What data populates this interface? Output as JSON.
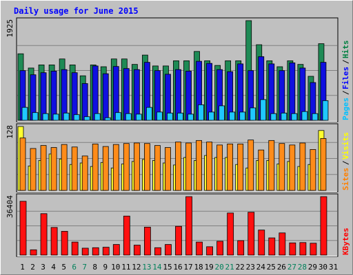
{
  "chart_data": {
    "type": "bar",
    "title": "Daily usage for June 2015",
    "categories": [
      "1",
      "2",
      "3",
      "4",
      "5",
      "6",
      "7",
      "8",
      "9",
      "10",
      "11",
      "12",
      "13",
      "14",
      "15",
      "16",
      "17",
      "18",
      "19",
      "20",
      "21",
      "22",
      "23",
      "24",
      "25",
      "26",
      "27",
      "28",
      "29",
      "30",
      "31"
    ],
    "weekend_days": [
      "6",
      "7",
      "13",
      "14",
      "20",
      "21",
      "27",
      "28"
    ],
    "panels": [
      {
        "id": "hits-files-pages",
        "max_label": "1925",
        "ylim": [
          0,
          1925
        ],
        "legend": [
          {
            "name": "Pages",
            "color": "#00c0ff"
          },
          {
            "name": "Files",
            "color": "#0000ff"
          },
          {
            "name": "Hits",
            "color": "#008040"
          }
        ],
        "series": [
          {
            "name": "Hits",
            "color": "#1f8a55",
            "values": [
              1285,
              1010,
              1070,
              1070,
              1185,
              1070,
              860,
              1070,
              1035,
              1185,
              1185,
              1080,
              1260,
              1050,
              1050,
              1150,
              1150,
              1330,
              1150,
              1060,
              1150,
              1150,
              1925,
              1460,
              1150,
              1035,
              1150,
              1080,
              850,
              1480,
              null
            ]
          },
          {
            "name": "Files",
            "color": "#1010e0",
            "values": [
              960,
              880,
              920,
              950,
              980,
              920,
              710,
              1050,
              900,
              1040,
              1000,
              980,
              1120,
              960,
              890,
              980,
              950,
              1140,
              1100,
              980,
              940,
              1090,
              960,
              1230,
              1090,
              960,
              1110,
              1010,
              730,
              1120,
              null
            ]
          },
          {
            "name": "Pages",
            "color": "#20c8ff",
            "values": [
              250,
              150,
              130,
              120,
              140,
              110,
              70,
              130,
              50,
              150,
              130,
              120,
              250,
              160,
              140,
              140,
              120,
              300,
              160,
              280,
              160,
              160,
              240,
              400,
              130,
              140,
              130,
              170,
              130,
              380,
              null
            ]
          }
        ]
      },
      {
        "id": "visits-sites",
        "max_label": "128",
        "ylim": [
          0,
          128
        ],
        "legend": [
          {
            "name": "Sites",
            "color": "#ff8000"
          },
          {
            "name": "Visits",
            "color": "#ffff00"
          }
        ],
        "series": [
          {
            "name": "Visits",
            "color": "#ffff30",
            "values": [
              128,
              49,
              60,
              73,
              63,
              52,
              55,
              48,
              56,
              45,
              53,
              58,
              62,
              60,
              55,
              51,
              66,
              60,
              70,
              66,
              66,
              52,
              45,
              60,
              60,
              53,
              58,
              48,
              52,
              120,
              null
            ]
          },
          {
            "name": "Sites",
            "color": "#ff8c1a",
            "values": [
              105,
              84,
              90,
              86,
              92,
              87,
              69,
              93,
              88,
              92,
              94,
              95,
              94,
              90,
              86,
              97,
              95,
              100,
              97,
              91,
              93,
              93,
              101,
              81,
              100,
              94,
              91,
              95,
              82,
              104,
              null
            ]
          }
        ]
      },
      {
        "id": "kbytes",
        "max_label": "36404",
        "ylim": [
          0,
          36404
        ],
        "legend": [
          {
            "name": "KBytes",
            "color": "#ff0000"
          }
        ],
        "series": [
          {
            "name": "KBytes",
            "color": "#ff1010",
            "values": [
              33500,
              3300,
              25800,
              17200,
              14800,
              8100,
              4300,
              4600,
              4900,
              6600,
              24300,
              6200,
              17400,
              4600,
              6600,
              17900,
              36404,
              8100,
              5200,
              8600,
              26200,
              9000,
              26700,
              15600,
              10700,
              13800,
              7600,
              7800,
              7400,
              36404,
              null
            ]
          }
        ]
      }
    ]
  }
}
